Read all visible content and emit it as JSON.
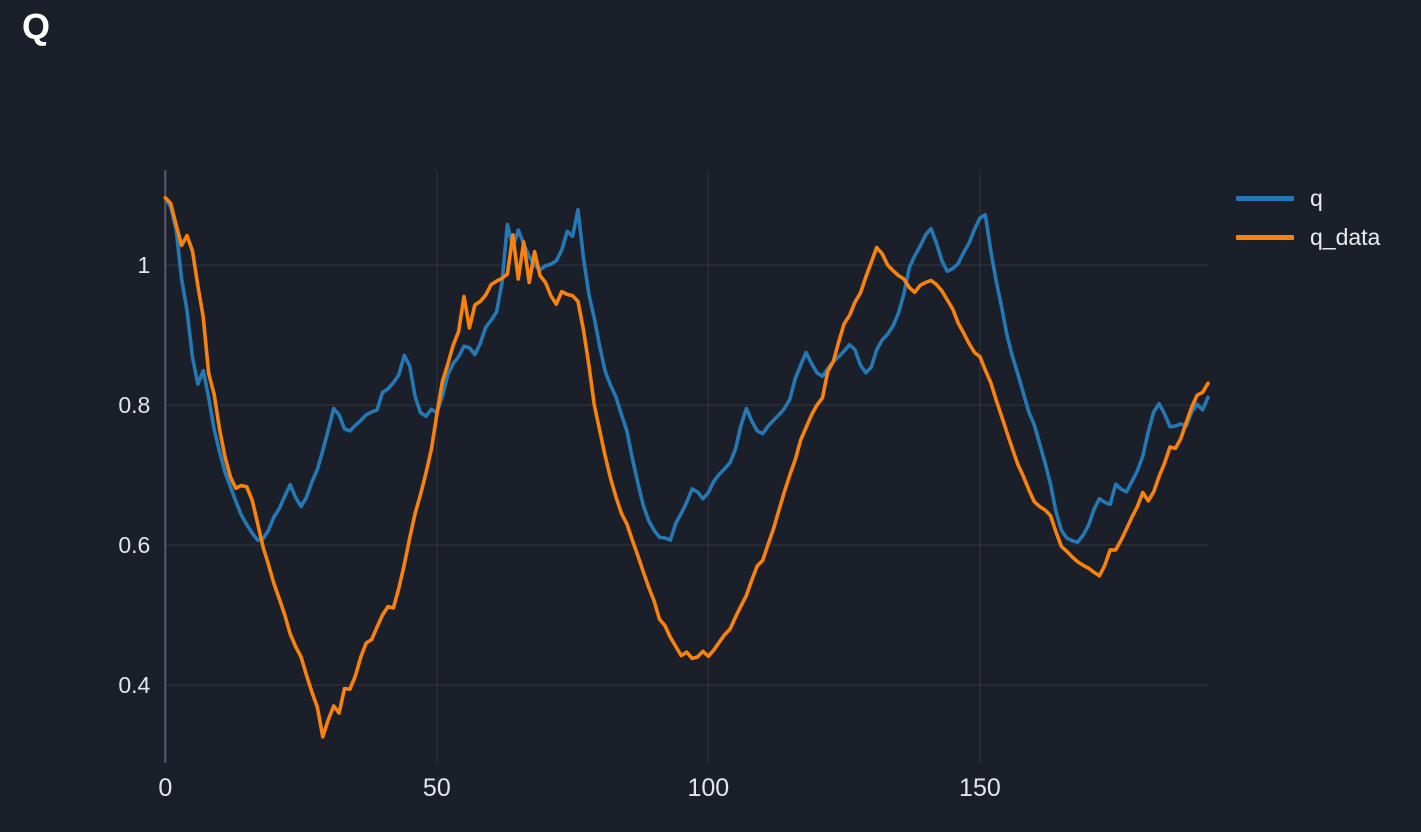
{
  "page": {
    "title": "Q"
  },
  "colors": {
    "background": "#1b1f2a",
    "grid": "rgba(255,255,255,0.07)",
    "axis_spine": "#565b66",
    "tick_text": "#e3e6eb",
    "title_text": "#ffffff",
    "series_blue": "#2478b4",
    "series_orange": "#f8820b"
  },
  "legend": {
    "position": "top-right",
    "items": [
      {
        "label": "q",
        "color": "#2478b4"
      },
      {
        "label": "q_data",
        "color": "#f8820b"
      }
    ]
  },
  "chart_data": {
    "type": "line",
    "title": "Q",
    "xlabel": "",
    "ylabel": "",
    "grid": true,
    "x_ticks": [
      0,
      50,
      100,
      150
    ],
    "y_ticks": [
      1,
      0.8,
      0.6,
      0.4
    ],
    "x_tick_labels": [
      "0",
      "50",
      "100",
      "150"
    ],
    "y_tick_labels": [
      "1",
      "0.8",
      "0.6",
      "0.4"
    ],
    "xlim": [
      0,
      192
    ],
    "ylim": [
      0.2886,
      1.1357
    ],
    "x_start": 0,
    "x_step": 1,
    "series": [
      {
        "name": "q",
        "color": "#2478b4",
        "values": [
          1.096,
          1.083,
          1.05,
          0.98,
          0.935,
          0.868,
          0.83,
          0.849,
          0.81,
          0.765,
          0.733,
          0.704,
          0.683,
          0.662,
          0.643,
          0.629,
          0.617,
          0.607,
          0.609,
          0.621,
          0.64,
          0.652,
          0.67,
          0.686,
          0.668,
          0.655,
          0.668,
          0.69,
          0.708,
          0.735,
          0.764,
          0.795,
          0.786,
          0.766,
          0.763,
          0.771,
          0.778,
          0.786,
          0.79,
          0.793,
          0.818,
          0.823,
          0.832,
          0.843,
          0.871,
          0.856,
          0.812,
          0.789,
          0.784,
          0.794,
          0.789,
          0.812,
          0.843,
          0.859,
          0.869,
          0.884,
          0.882,
          0.872,
          0.888,
          0.911,
          0.921,
          0.933,
          0.975,
          1.058,
          1.025,
          1.05,
          1.03,
          1.012,
          1.0,
          0.993,
          0.999,
          1.001,
          1.006,
          1.021,
          1.048,
          1.041,
          1.079,
          1.01,
          0.958,
          0.924,
          0.883,
          0.848,
          0.828,
          0.811,
          0.786,
          0.763,
          0.724,
          0.689,
          0.657,
          0.635,
          0.621,
          0.611,
          0.61,
          0.607,
          0.631,
          0.645,
          0.661,
          0.68,
          0.676,
          0.666,
          0.675,
          0.691,
          0.701,
          0.709,
          0.718,
          0.737,
          0.771,
          0.795,
          0.777,
          0.763,
          0.759,
          0.77,
          0.778,
          0.786,
          0.795,
          0.808,
          0.838,
          0.857,
          0.875,
          0.859,
          0.846,
          0.841,
          0.852,
          0.862,
          0.869,
          0.877,
          0.886,
          0.879,
          0.857,
          0.846,
          0.854,
          0.879,
          0.893,
          0.901,
          0.913,
          0.931,
          0.959,
          0.996,
          1.013,
          1.027,
          1.043,
          1.052,
          1.031,
          1.006,
          0.991,
          0.995,
          1.002,
          1.018,
          1.031,
          1.051,
          1.067,
          1.072,
          1.02,
          0.977,
          0.94,
          0.899,
          0.869,
          0.844,
          0.817,
          0.79,
          0.772,
          0.745,
          0.717,
          0.687,
          0.648,
          0.621,
          0.61,
          0.606,
          0.604,
          0.614,
          0.628,
          0.651,
          0.666,
          0.661,
          0.658,
          0.687,
          0.68,
          0.676,
          0.691,
          0.706,
          0.727,
          0.762,
          0.79,
          0.802,
          0.787,
          0.769,
          0.77,
          0.773,
          0.77,
          0.79,
          0.801,
          0.793,
          0.811
        ]
      },
      {
        "name": "q_data",
        "color": "#f8820b",
        "values": [
          1.096,
          1.088,
          1.057,
          1.028,
          1.042,
          1.02,
          0.97,
          0.925,
          0.845,
          0.815,
          0.765,
          0.726,
          0.697,
          0.681,
          0.685,
          0.683,
          0.664,
          0.631,
          0.597,
          0.572,
          0.545,
          0.523,
          0.5,
          0.473,
          0.455,
          0.44,
          0.414,
          0.39,
          0.368,
          0.326,
          0.35,
          0.37,
          0.36,
          0.395,
          0.394,
          0.413,
          0.44,
          0.46,
          0.465,
          0.483,
          0.5,
          0.512,
          0.51,
          0.538,
          0.572,
          0.61,
          0.645,
          0.672,
          0.703,
          0.737,
          0.786,
          0.833,
          0.858,
          0.885,
          0.905,
          0.955,
          0.91,
          0.943,
          0.948,
          0.957,
          0.972,
          0.977,
          0.981,
          0.987,
          1.043,
          0.98,
          1.033,
          0.975,
          1.019,
          0.985,
          0.975,
          0.956,
          0.944,
          0.962,
          0.958,
          0.956,
          0.948,
          0.907,
          0.857,
          0.8,
          0.763,
          0.727,
          0.695,
          0.668,
          0.645,
          0.63,
          0.607,
          0.585,
          0.562,
          0.54,
          0.52,
          0.494,
          0.485,
          0.468,
          0.455,
          0.442,
          0.447,
          0.438,
          0.44,
          0.448,
          0.441,
          0.45,
          0.461,
          0.472,
          0.48,
          0.497,
          0.513,
          0.528,
          0.55,
          0.57,
          0.578,
          0.601,
          0.623,
          0.65,
          0.676,
          0.7,
          0.722,
          0.75,
          0.768,
          0.786,
          0.8,
          0.81,
          0.848,
          0.862,
          0.89,
          0.916,
          0.928,
          0.947,
          0.96,
          0.983,
          1.004,
          1.025,
          1.016,
          1.0,
          0.992,
          0.985,
          0.98,
          0.968,
          0.961,
          0.971,
          0.975,
          0.978,
          0.972,
          0.963,
          0.95,
          0.937,
          0.917,
          0.903,
          0.888,
          0.875,
          0.869,
          0.85,
          0.832,
          0.807,
          0.784,
          0.76,
          0.737,
          0.715,
          0.698,
          0.679,
          0.662,
          0.655,
          0.65,
          0.642,
          0.619,
          0.598,
          0.591,
          0.583,
          0.576,
          0.571,
          0.567,
          0.561,
          0.556,
          0.571,
          0.593,
          0.593,
          0.607,
          0.623,
          0.64,
          0.655,
          0.675,
          0.663,
          0.676,
          0.698,
          0.717,
          0.74,
          0.738,
          0.752,
          0.775,
          0.797,
          0.814,
          0.818,
          0.831
        ]
      }
    ]
  }
}
